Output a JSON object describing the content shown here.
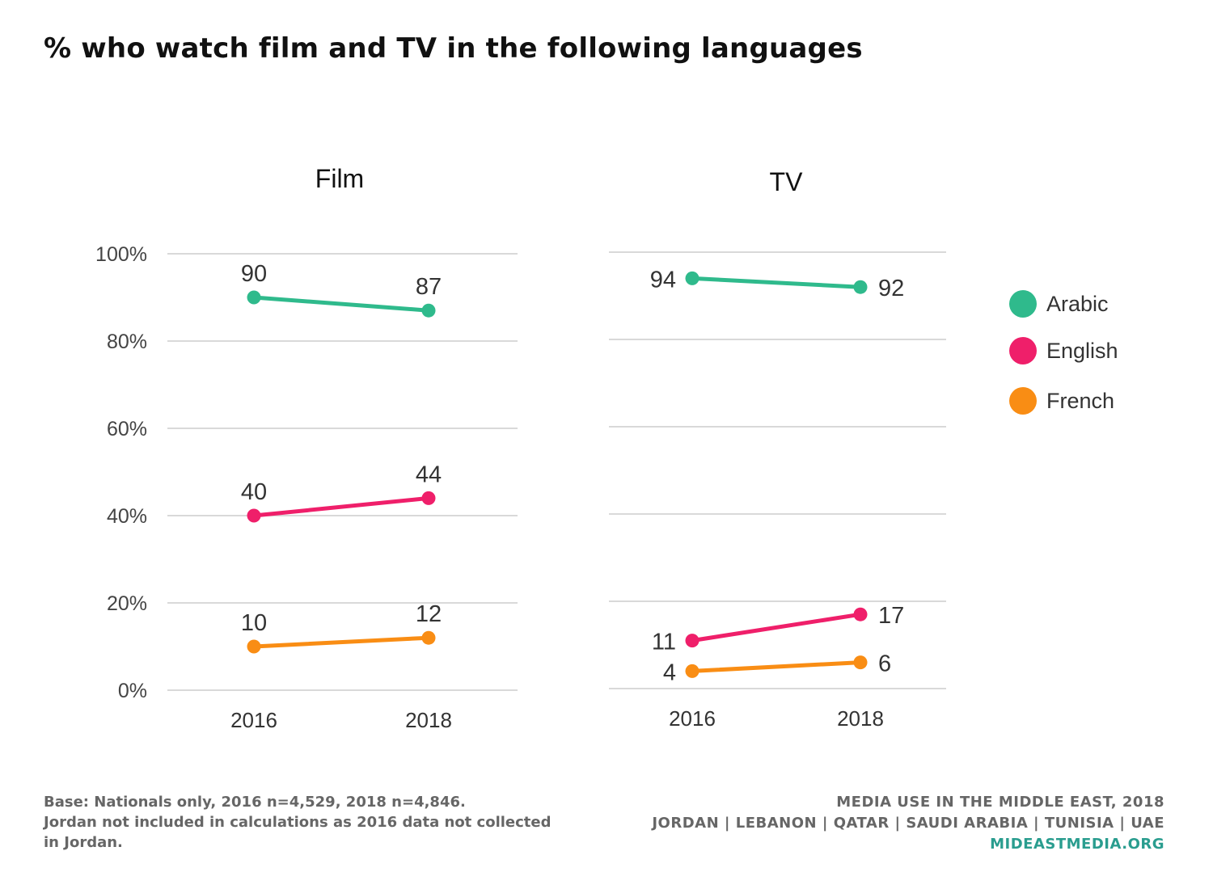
{
  "title": "% who watch film and TV in the following languages",
  "legend": [
    {
      "name": "Arabic",
      "color": "#2fba8c"
    },
    {
      "name": "English",
      "color": "#ef1f6a"
    },
    {
      "name": "French",
      "color": "#f98d14"
    }
  ],
  "chart_data": [
    {
      "type": "line",
      "title": "Film",
      "categories": [
        "2016",
        "2018"
      ],
      "ylim": [
        0,
        100
      ],
      "y_ticks": [
        "0%",
        "20%",
        "40%",
        "60%",
        "80%",
        "100%"
      ],
      "y_tick_values": [
        0,
        20,
        40,
        60,
        80,
        100
      ],
      "grid": true,
      "series": [
        {
          "name": "Arabic",
          "color": "#2fba8c",
          "values": [
            90,
            87
          ],
          "labels": [
            "90",
            "87"
          ]
        },
        {
          "name": "English",
          "color": "#ef1f6a",
          "values": [
            40,
            44
          ],
          "labels": [
            "40",
            "44"
          ]
        },
        {
          "name": "French",
          "color": "#f98d14",
          "values": [
            10,
            12
          ],
          "labels": [
            "10",
            "12"
          ]
        }
      ]
    },
    {
      "type": "line",
      "title": "TV",
      "categories": [
        "2016",
        "2018"
      ],
      "ylim": [
        0,
        100
      ],
      "grid": true,
      "series": [
        {
          "name": "Arabic",
          "color": "#2fba8c",
          "values": [
            94,
            92
          ],
          "labels": [
            "94",
            "92"
          ]
        },
        {
          "name": "English",
          "color": "#ef1f6a",
          "values": [
            11,
            17
          ],
          "labels": [
            "11",
            "17"
          ]
        },
        {
          "name": "French",
          "color": "#f98d14",
          "values": [
            4,
            6
          ],
          "labels": [
            "4",
            "6"
          ]
        }
      ]
    }
  ],
  "footer": {
    "base_line1": "Base: Nationals only, 2016 n=4,529, 2018 n=4,846.",
    "base_line2": "Jordan not included in calculations as 2016 data not collected in Jordan.",
    "source_title": "MEDIA USE IN THE MIDDLE EAST, 2018",
    "source_countries": "JORDAN | LEBANON | QATAR | SAUDI ARABIA | TUNISIA | UAE",
    "source_site": "MIDEASTMEDIA.ORG"
  }
}
